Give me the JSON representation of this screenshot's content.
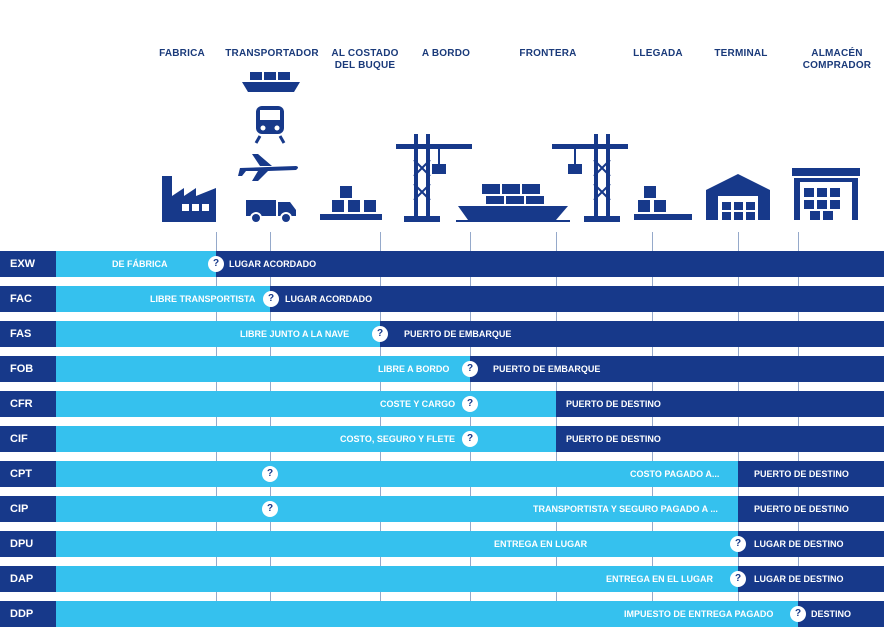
{
  "columns": [
    "FABRICA",
    "TRANSPORTADOR",
    "AL COSTADO\nDEL BUQUE",
    "A BORDO",
    "FRONTERA",
    "LLEGADA",
    "TERMINAL",
    "ALMACÉN\nCOMPRADOR"
  ],
  "icons": [
    "factory-icon",
    "ship-icon",
    "train-icon",
    "airplane-icon",
    "truck-icon",
    "boxes-icon",
    "port-crane-icon",
    "cargo-ship-icon",
    "port-crane-icon",
    "boxes-icon",
    "warehouse-icon",
    "warehouse-icon"
  ],
  "colors": {
    "light": "#35c1ee",
    "dark": "#17398a",
    "line": "#8aa0c4"
  },
  "rows": [
    {
      "code": "EXW",
      "light_text": "DE FÁBRICA",
      "dark_text": "LUGAR ACORDADO",
      "q": "?"
    },
    {
      "code": "FAC",
      "light_text": "LIBRE TRANSPORTISTA",
      "dark_text": "LUGAR ACORDADO",
      "q": "?"
    },
    {
      "code": "FAS",
      "light_text": "LIBRE JUNTO A LA NAVE",
      "dark_text": "PUERTO DE EMBARQUE",
      "q": "?"
    },
    {
      "code": "FOB",
      "light_text": "LIBRE A BORDO",
      "dark_text": "PUERTO DE EMBARQUE",
      "q": "?"
    },
    {
      "code": "CFR",
      "light_text": "COSTE Y CARGO",
      "dark_text": "PUERTO DE DESTINO",
      "q": "?"
    },
    {
      "code": "CIF",
      "light_text": "COSTO, SEGURO Y FLETE",
      "dark_text": "PUERTO DE DESTINO",
      "q": "?"
    },
    {
      "code": "CPT",
      "light_text": "COSTO PAGADO A...",
      "dark_text": "PUERTO DE DESTINO",
      "q": "?"
    },
    {
      "code": "CIP",
      "light_text": "TRANSPORTISTA Y SEGURO PAGADO A ...",
      "dark_text": "PUERTO DE DESTINO",
      "q": "?"
    },
    {
      "code": "DPU",
      "light_text": "ENTREGA EN LUGAR",
      "dark_text": "LUGAR DE DESTINO",
      "q": "?"
    },
    {
      "code": "DAP",
      "light_text": "ENTREGA EN EL LUGAR",
      "dark_text": "LUGAR DE DESTINO",
      "q": "?"
    },
    {
      "code": "DDP",
      "light_text": "IMPUESTO DE ENTREGA PAGADO",
      "dark_text": "DESTINO",
      "q": "?"
    }
  ]
}
